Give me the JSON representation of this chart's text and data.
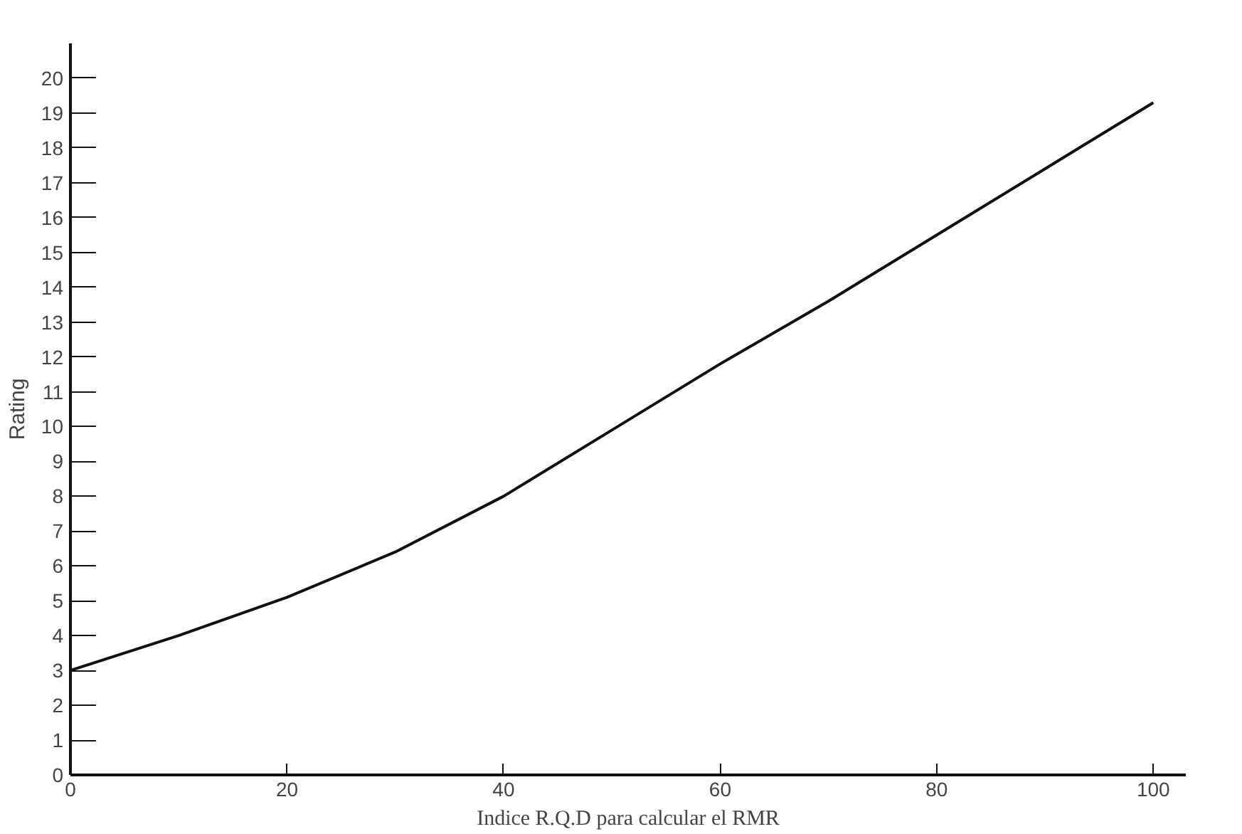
{
  "chart_data": {
    "type": "line",
    "xlabel": "Indice R.Q.D para calcular el RMR",
    "ylabel": "Rating",
    "x": [
      0,
      10,
      20,
      30,
      40,
      50,
      60,
      70,
      80,
      90,
      100
    ],
    "series": [
      {
        "color": "#111111",
        "values": [
          3.0,
          4.0,
          5.1,
          6.4,
          8.0,
          9.9,
          11.8,
          13.6,
          15.5,
          17.4,
          19.3
        ]
      }
    ],
    "xlim": [
      0,
      103
    ],
    "ylim": [
      0,
      21
    ],
    "xticks": [
      0,
      20,
      40,
      60,
      80,
      100
    ],
    "yticks": [
      0,
      1,
      2,
      3,
      4,
      5,
      6,
      7,
      8,
      9,
      10,
      11,
      12,
      13,
      14,
      15,
      16,
      17,
      18,
      19,
      20
    ],
    "grid": false,
    "marker": "none",
    "line_style": "solid"
  }
}
